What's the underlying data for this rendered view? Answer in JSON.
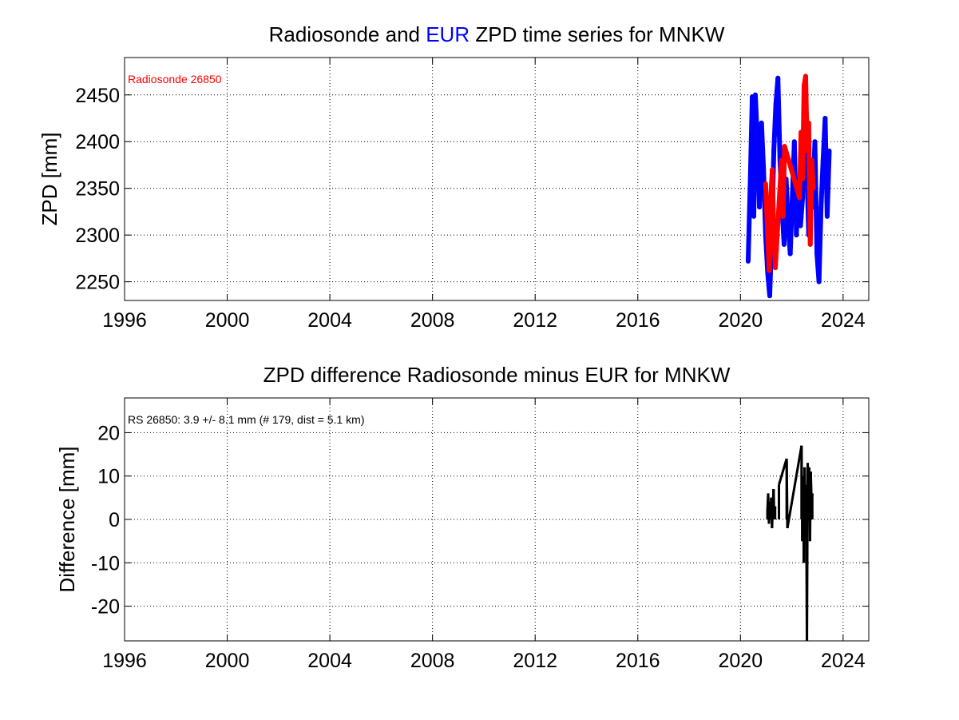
{
  "chart_data": [
    {
      "type": "line",
      "title_parts": [
        {
          "text": "Radiosonde and ",
          "color": "#000000"
        },
        {
          "text": "EUR",
          "color": "#0000ff"
        },
        {
          "text": " ZPD time series for MNKW",
          "color": "#000000"
        }
      ],
      "ylabel": "ZPD [mm]",
      "xlim": [
        1996,
        2025
      ],
      "ylim": [
        2230,
        2490
      ],
      "xticks": [
        1996,
        2000,
        2004,
        2008,
        2012,
        2016,
        2020,
        2024
      ],
      "yticks": [
        2250,
        2300,
        2350,
        2400,
        2450
      ],
      "grid": true,
      "annotation": {
        "text": "Radiosonde 26850",
        "color": "#ff0000",
        "position": "top-left"
      },
      "series": [
        {
          "color": "#0000ff",
          "x": [
            2020.3,
            2020.38,
            2020.46,
            2020.52,
            2020.58,
            2020.66,
            2020.74,
            2020.82,
            2020.9,
            2020.98,
            2021.06,
            2021.14,
            2021.22,
            2021.3,
            2021.38,
            2021.46,
            2021.54,
            2021.62,
            2021.7,
            2021.78,
            2021.86,
            2021.94,
            2022.02,
            2022.1,
            2022.18,
            2022.26,
            2022.34,
            2022.42,
            2022.5,
            2022.58,
            2022.66,
            2022.74,
            2022.82,
            2022.9,
            2022.98,
            2023.06,
            2023.14,
            2023.22,
            2023.3,
            2023.38,
            2023.46
          ],
          "y": [
            2272,
            2355,
            2448,
            2320,
            2450,
            2400,
            2330,
            2420,
            2370,
            2300,
            2260,
            2235,
            2300,
            2390,
            2440,
            2468,
            2380,
            2330,
            2290,
            2360,
            2310,
            2280,
            2340,
            2400,
            2300,
            2360,
            2310,
            2340,
            2440,
            2380,
            2300,
            2350,
            2330,
            2400,
            2280,
            2250,
            2330,
            2380,
            2425,
            2320,
            2390
          ]
        },
        {
          "color": "#ff0000",
          "x": [
            2020.98,
            2021.06,
            2021.12,
            2021.18,
            2021.24,
            2021.3,
            2021.36,
            2021.6,
            2021.66,
            2021.72,
            2022.3,
            2022.36,
            2022.42,
            2022.48,
            2022.54,
            2022.6,
            2022.66,
            2022.72,
            2022.78,
            2022.84
          ],
          "y": [
            2355,
            2300,
            2262,
            2340,
            2370,
            2300,
            2265,
            2380,
            2320,
            2395,
            2340,
            2410,
            2360,
            2460,
            2470,
            2390,
            2420,
            2290,
            2380,
            2350
          ]
        }
      ]
    },
    {
      "type": "line",
      "title_parts": [
        {
          "text": "ZPD difference Radiosonde minus EUR for MNKW",
          "color": "#000000"
        }
      ],
      "ylabel": "Difference [mm]",
      "xlim": [
        1996,
        2025
      ],
      "ylim": [
        -28,
        28
      ],
      "xticks": [
        1996,
        2000,
        2004,
        2008,
        2012,
        2016,
        2020,
        2024
      ],
      "yticks": [
        -20,
        -10,
        0,
        10,
        20
      ],
      "grid": true,
      "annotation": {
        "text": "RS 26850: 3.9 +/- 8.1 mm (# 179, dist =   5.1 km)",
        "color": "#000000",
        "position": "top-left"
      },
      "series": [
        {
          "color": "#000000",
          "x": [
            2021.05,
            2021.08,
            2021.11,
            2021.14,
            2021.17,
            2021.2,
            2021.23,
            2021.26,
            2021.29,
            2021.32,
            2021.35
          ],
          "y": [
            2,
            6,
            -1,
            4,
            1,
            5,
            -2,
            3,
            7,
            0,
            3
          ],
          "style": "bars"
        },
        {
          "color": "#000000",
          "x": [
            2021.5,
            2021.8,
            2021.83,
            2022.38,
            2022.41,
            2022.44,
            2022.47,
            2022.5,
            2022.53,
            2022.56,
            2022.59,
            2022.62,
            2022.65,
            2022.68,
            2022.71,
            2022.74,
            2022.77,
            2022.8
          ],
          "y": [
            8,
            14,
            -2,
            17,
            -5,
            10,
            -10,
            12,
            0,
            8,
            -28,
            13,
            3,
            12,
            -5,
            11,
            4,
            6
          ],
          "style": "bars"
        }
      ]
    }
  ]
}
